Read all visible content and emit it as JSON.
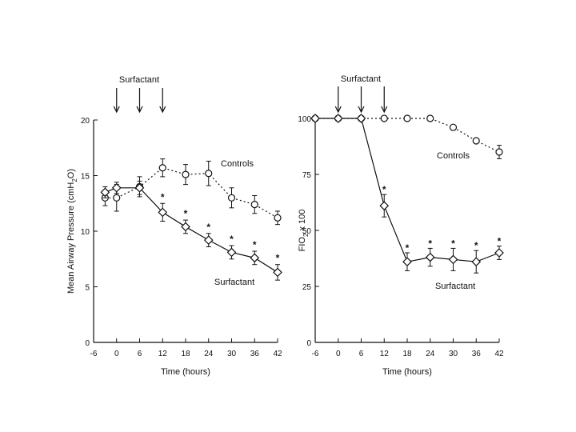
{
  "chart_data": [
    {
      "type": "line",
      "xlabel": "Time (hours)",
      "ylabel": "Mean Airway Pressure (cmH2O)",
      "ylabel_parts": [
        "Mean Airway Pressure (cmH",
        "2",
        "O)"
      ],
      "xlim": [
        -6,
        42
      ],
      "ylim": [
        0,
        20
      ],
      "x_ticks": [
        -6,
        0,
        6,
        12,
        18,
        24,
        30,
        36,
        42
      ],
      "x_tick_labels": [
        "-6",
        "0",
        "6",
        "12",
        "18",
        "24",
        "30",
        "36",
        "42"
      ],
      "y_ticks": [
        0,
        5,
        10,
        15,
        20
      ],
      "y_tick_labels": [
        "0",
        "5",
        "10",
        "15",
        "20"
      ],
      "top_annotation": "Surfactant",
      "dose_times": [
        0,
        6,
        12
      ],
      "series": [
        {
          "name": "Controls",
          "style": "dotted",
          "marker": "circle",
          "x": [
            -3,
            0,
            6,
            12,
            18,
            24,
            30,
            36,
            42
          ],
          "y": [
            13.0,
            13.0,
            14.0,
            15.7,
            15.1,
            15.2,
            13.0,
            12.4,
            11.2
          ],
          "err": [
            0.7,
            1.2,
            0.9,
            0.8,
            0.9,
            1.1,
            0.9,
            0.8,
            0.6
          ]
        },
        {
          "name": "Surfactant",
          "style": "solid",
          "marker": "diamond",
          "x": [
            -3,
            0,
            6,
            12,
            18,
            24,
            30,
            36,
            42
          ],
          "y": [
            13.5,
            13.9,
            13.9,
            11.7,
            10.4,
            9.2,
            8.1,
            7.6,
            6.3
          ],
          "err": [
            0.5,
            0.5,
            0.6,
            0.8,
            0.6,
            0.6,
            0.6,
            0.6,
            0.7
          ]
        }
      ],
      "significance_marks": {
        "symbol": "*",
        "x": [
          12,
          18,
          24,
          30,
          36,
          42
        ]
      }
    },
    {
      "type": "line",
      "xlabel": "Time (hours)",
      "ylabel": "FIO2 x 100",
      "ylabel_parts": [
        "FIO",
        "2",
        " x 100"
      ],
      "xlim": [
        -6,
        42
      ],
      "ylim": [
        0,
        100
      ],
      "x_ticks": [
        -6,
        0,
        6,
        12,
        18,
        24,
        30,
        36,
        42
      ],
      "x_tick_labels": [
        "-6",
        "0",
        "6",
        "12",
        "18",
        "24",
        "30",
        "36",
        "42"
      ],
      "y_ticks": [
        0,
        25,
        50,
        75,
        100
      ],
      "y_tick_labels": [
        "0",
        "25",
        "50",
        "75",
        "100"
      ],
      "top_annotation": "Surfactant",
      "dose_times": [
        0,
        6,
        12
      ],
      "series": [
        {
          "name": "Controls",
          "style": "dotted",
          "marker": "circle",
          "x": [
            -6,
            0,
            6,
            12,
            18,
            24,
            30,
            36,
            42
          ],
          "y": [
            100,
            100,
            100,
            100,
            100,
            100,
            96,
            90,
            85
          ],
          "err": [
            0,
            0,
            0,
            0,
            0,
            0,
            0,
            0,
            3
          ]
        },
        {
          "name": "Surfactant",
          "style": "solid",
          "marker": "diamond",
          "x": [
            -6,
            0,
            6,
            12,
            18,
            24,
            30,
            36,
            42
          ],
          "y": [
            100,
            100,
            100,
            61,
            36,
            38,
            37,
            36,
            40
          ],
          "err": [
            0,
            0,
            0,
            5,
            4,
            4,
            5,
            5,
            3
          ]
        }
      ],
      "significance_marks": {
        "symbol": "*",
        "x": [
          12,
          18,
          24,
          30,
          36,
          42
        ]
      }
    }
  ]
}
